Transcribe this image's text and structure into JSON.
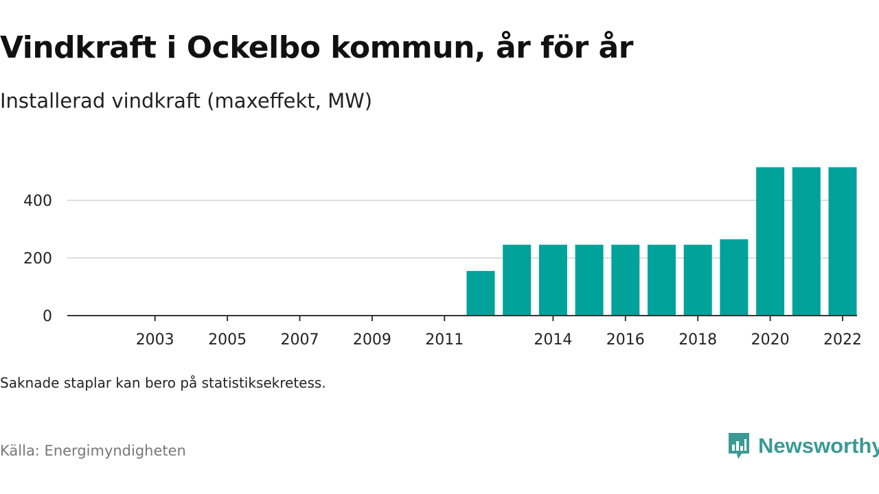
{
  "header": {
    "title": "Vindkraft i Ockelbo kommun, år för år",
    "subtitle": "Installerad vindkraft (maxeffekt, MW)"
  },
  "footer": {
    "note": "Saknade staplar kan bero på statistiksekretess.",
    "source": "Källa: Energimyndigheten",
    "brand_name": "Newsworthy",
    "brand_icon": "newsworthy-logo-icon",
    "brand_color": "#3a9a94"
  },
  "chart_data": {
    "type": "bar",
    "categories": [
      "2002",
      "2003",
      "2004",
      "2005",
      "2006",
      "2007",
      "2008",
      "2009",
      "2010",
      "2011",
      "2012",
      "2013",
      "2014",
      "2015",
      "2016",
      "2017",
      "2018",
      "2019",
      "2020",
      "2021",
      "2022"
    ],
    "values": [
      0,
      0,
      0,
      0,
      0,
      0,
      0,
      0,
      0,
      0,
      155,
      246,
      246,
      246,
      246,
      246,
      246,
      265,
      515,
      515,
      515
    ],
    "x_tick_labels": [
      "2003",
      "2005",
      "2007",
      "2009",
      "2011",
      "2014",
      "2016",
      "2018",
      "2020",
      "2022"
    ],
    "y_ticks": [
      0,
      200,
      400
    ],
    "ylim": [
      0,
      560
    ],
    "grid": true,
    "bar_color": "#00a29a",
    "grid_color": "#dddddd",
    "axis_color": "#333333"
  }
}
